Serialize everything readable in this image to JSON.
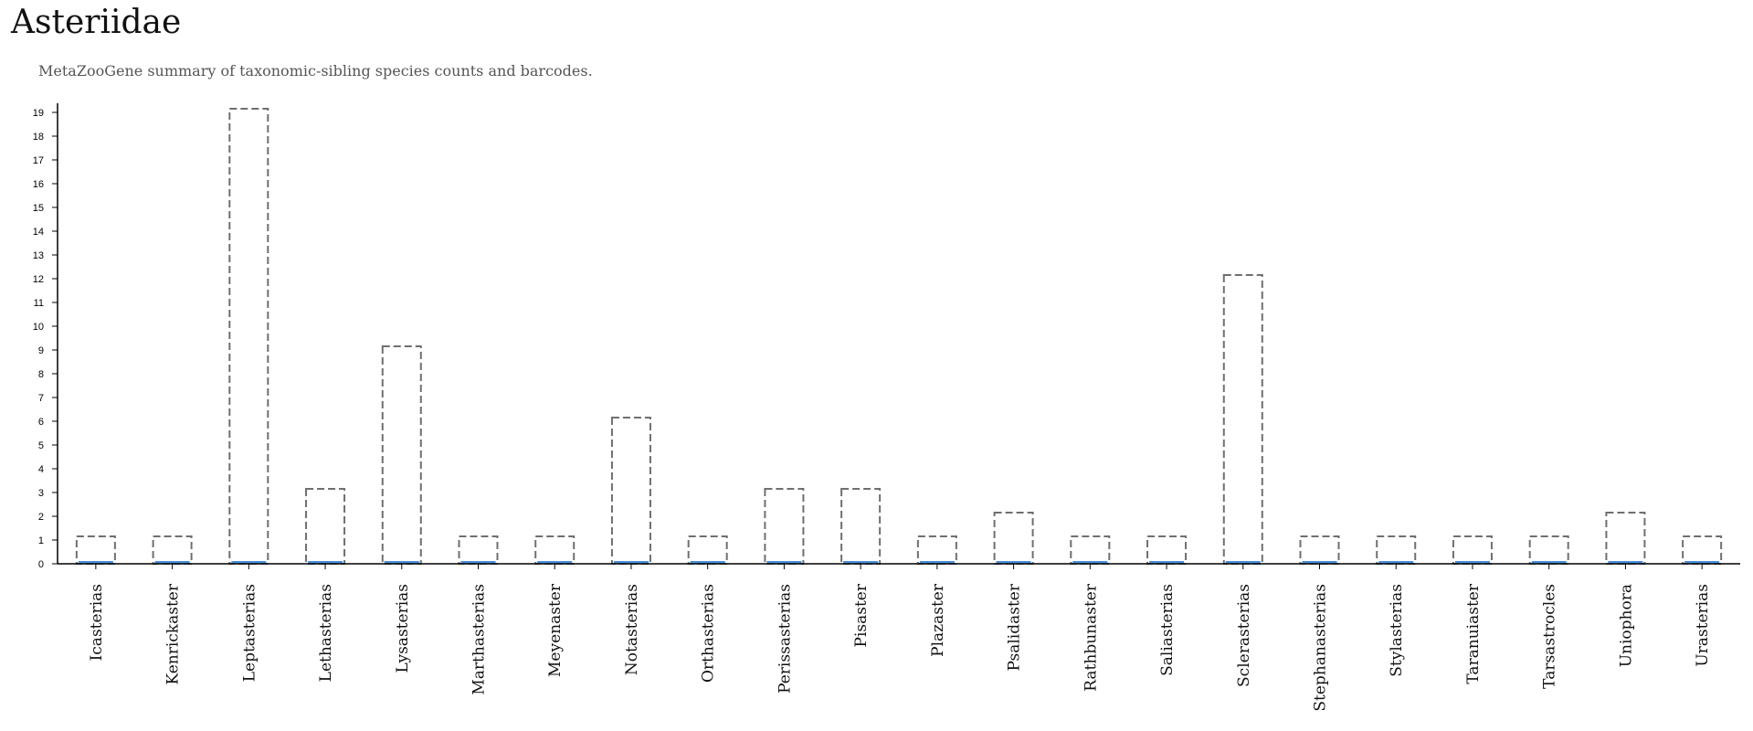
{
  "title": "Asteriidae",
  "subtitle": "MetaZooGene summary of taxonomic-sibling species counts and barcodes.",
  "colors": {
    "species_outline": "#6f6f6f",
    "barcode_fill": "#4a8fd6",
    "axis": "#000000"
  },
  "chart_data": {
    "type": "bar",
    "categories": [
      "Icasterias",
      "Kenrickaster",
      "Leptasterias",
      "Lethasterias",
      "Lysasterias",
      "Marthasterias",
      "Meyenaster",
      "Notasterias",
      "Orthasterias",
      "Perissasterias",
      "Pisaster",
      "Plazaster",
      "Psalidaster",
      "Rathbunaster",
      "Saliasterias",
      "Sclerasterias",
      "Stephanasterias",
      "Stylasterias",
      "Taranuiaster",
      "Tarsastrocles",
      "Uniophora",
      "Urasterias"
    ],
    "series": [
      {
        "style": "dashed-outline",
        "values": [
          1,
          1,
          19,
          3,
          9,
          1,
          1,
          6,
          1,
          3,
          3,
          1,
          2,
          1,
          1,
          12,
          1,
          1,
          1,
          1,
          2,
          1
        ]
      },
      {
        "style": "solid-fill",
        "values": [
          0,
          0,
          0,
          0,
          0,
          0,
          0,
          0,
          0,
          0,
          0,
          0,
          0,
          0,
          0,
          0,
          0,
          0,
          0,
          0,
          0,
          0
        ]
      }
    ],
    "yticks": [
      0,
      1,
      2,
      3,
      4,
      5,
      6,
      7,
      8,
      9,
      10,
      11,
      12,
      13,
      14,
      15,
      16,
      17,
      18,
      19
    ],
    "ylim": [
      0,
      19
    ],
    "xlabel": "",
    "ylabel": "",
    "grid": false,
    "legend": "none"
  }
}
